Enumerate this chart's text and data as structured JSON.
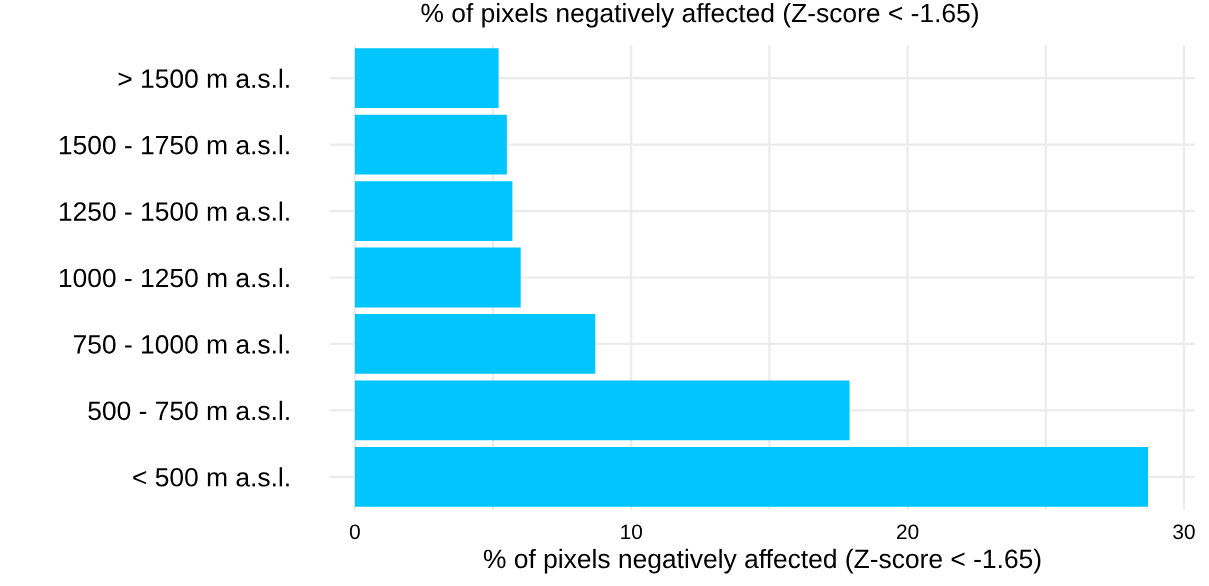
{
  "chart_data": {
    "type": "bar",
    "orientation": "horizontal",
    "title": "% of pixels negatively affected (Z-score < -1.65)",
    "xlabel": "% of pixels negatively affected (Z-score < -1.65)",
    "categories": [
      "> 1500 m a.s.l.",
      "1500 - 1750 m a.s.l.",
      "1250 - 1500 m a.s.l.",
      "1000 - 1250 m a.s.l.",
      "750 - 1000 m a.s.l.",
      "500 - 750 m a.s.l.",
      "< 500 m a.s.l."
    ],
    "values": [
      5.2,
      5.5,
      5.7,
      6.0,
      8.7,
      17.9,
      28.7
    ],
    "color": "#00c5ff",
    "xlim": [
      -0.9,
      30.4
    ],
    "xticks": [
      0,
      {
        "value": 5,
        "label": null
      },
      10,
      {
        "value": 15,
        "label": null
      },
      20,
      {
        "value": 25,
        "label": null
      },
      30
    ],
    "grid": true
  }
}
